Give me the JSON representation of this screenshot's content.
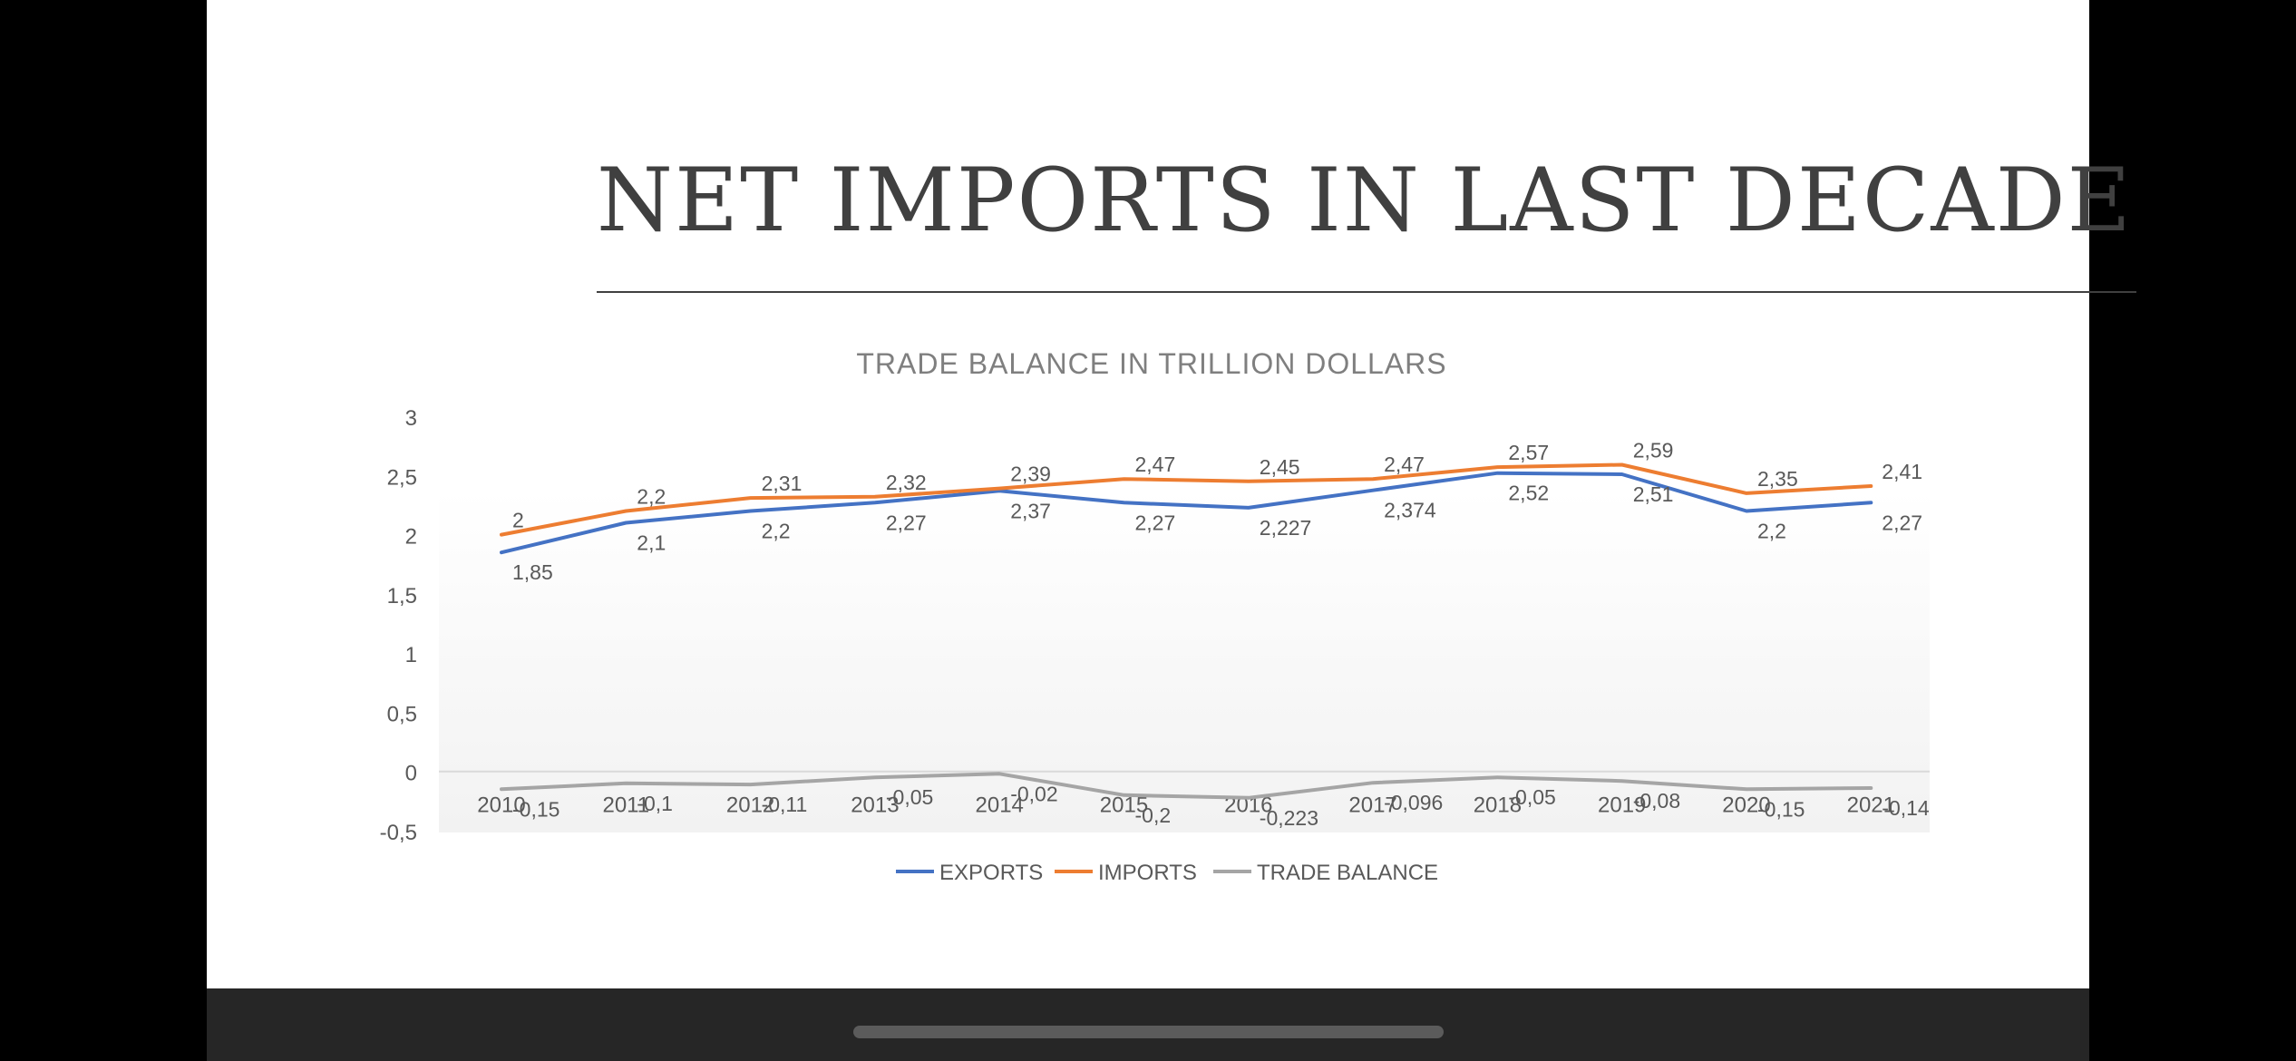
{
  "slide": {
    "title": "NET IMPORTS IN LAST DECADE"
  },
  "chart_data": {
    "type": "line",
    "title": "TRADE BALANCE IN TRILLION DOLLARS",
    "xlabel": "",
    "ylabel": "",
    "categories": [
      "2010",
      "2011",
      "2012",
      "2013",
      "2014",
      "2015",
      "2016",
      "2017",
      "2018",
      "2019",
      "2020",
      "2021"
    ],
    "ylim": [
      -0.5,
      3
    ],
    "yticks": [
      -0.5,
      0,
      0.5,
      1,
      1.5,
      2,
      2.5,
      3
    ],
    "ytick_labels": [
      "-0,5",
      "0",
      "0,5",
      "1",
      "1,5",
      "2",
      "2,5",
      "3"
    ],
    "grid": false,
    "legend_position": "bottom",
    "series": [
      {
        "name": "EXPORTS",
        "color": "#4472C4",
        "values": [
          1.85,
          2.1,
          2.2,
          2.27,
          2.37,
          2.27,
          2.227,
          2.374,
          2.52,
          2.51,
          2.2,
          2.27
        ],
        "labels": [
          "1,85",
          "2,1",
          "2,2",
          "2,27",
          "2,37",
          "2,27",
          "2,227",
          "2,374",
          "2,52",
          "2,51",
          "2,2",
          "2,27"
        ]
      },
      {
        "name": "IMPORTS",
        "color": "#ED7D31",
        "values": [
          2,
          2.2,
          2.31,
          2.32,
          2.39,
          2.47,
          2.45,
          2.47,
          2.57,
          2.59,
          2.35,
          2.41
        ],
        "labels": [
          "2",
          "2,2",
          "2,31",
          "2,32",
          "2,39",
          "2,47",
          "2,45",
          "2,47",
          "2,57",
          "2,59",
          "2,35",
          "2,41"
        ]
      },
      {
        "name": "TRADE BALANCE",
        "color": "#A5A5A5",
        "values": [
          -0.15,
          -0.1,
          -0.11,
          -0.05,
          -0.02,
          -0.2,
          -0.223,
          -0.096,
          -0.05,
          -0.08,
          -0.15,
          -0.14
        ],
        "labels": [
          "-0,15",
          "-0,1",
          "-0,11",
          "-0,05",
          "-0,02",
          "-0,2",
          "-0,223",
          "-0,096",
          "-0,05",
          "-0,08",
          "-0,15",
          "-0,14"
        ]
      }
    ]
  }
}
